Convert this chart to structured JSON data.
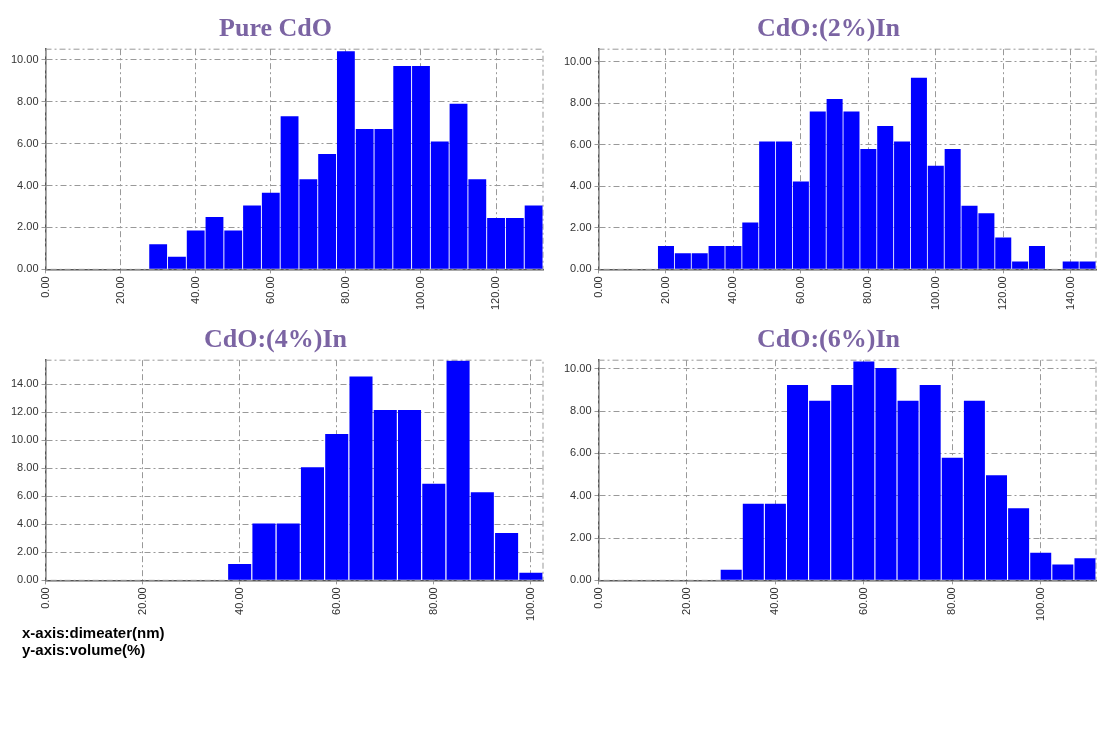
{
  "chart_data": [
    {
      "type": "histogram",
      "title": "Pure CdO",
      "bins": [
        27.5,
        32.5,
        37.5,
        42.5,
        47.5,
        52.5,
        57.5,
        62.5,
        67.5,
        72.5,
        77.5,
        82.5,
        87.5,
        92.5,
        97.5,
        102.5,
        107.5,
        112.5,
        117.5,
        122.5,
        127.5,
        132.5
      ],
      "values": [
        1.2,
        0.6,
        1.85,
        2.5,
        1.85,
        3.05,
        3.65,
        7.3,
        4.3,
        5.5,
        10.4,
        6.7,
        6.7,
        9.7,
        9.7,
        6.1,
        7.9,
        4.3,
        2.45,
        2.45,
        3.05
      ],
      "color": "#0000ff",
      "xlim": [
        0,
        132.5
      ],
      "ylim": [
        0,
        10.5
      ],
      "xticks": [
        {
          "value": 0,
          "label": "0.00"
        },
        {
          "value": 20,
          "label": "20.00"
        },
        {
          "value": 40,
          "label": "40.00"
        },
        {
          "value": 60,
          "label": "60.00"
        },
        {
          "value": 80,
          "label": "80.00"
        },
        {
          "value": 100,
          "label": "100.00"
        },
        {
          "value": 120,
          "label": "120.00"
        }
      ],
      "yticks": [
        {
          "value": 0,
          "label": "0.00"
        },
        {
          "value": 2,
          "label": "2.00"
        },
        {
          "value": 4,
          "label": "4.00"
        },
        {
          "value": 6,
          "label": "6.00"
        },
        {
          "value": 8,
          "label": "8.00"
        },
        {
          "value": 10,
          "label": "10.00"
        }
      ],
      "grid": true
    },
    {
      "type": "histogram",
      "title": "CdO:(2%)In",
      "bins": [
        17.5,
        22.5,
        27.5,
        32.5,
        37.5,
        42.5,
        47.5,
        52.5,
        57.5,
        62.5,
        67.5,
        72.5,
        77.5,
        82.5,
        87.5,
        92.5,
        97.5,
        102.5,
        107.5,
        112.5,
        117.5,
        122.5,
        127.5,
        132.5,
        137.5,
        142.5,
        147.5
      ],
      "values": [
        1.13,
        0.78,
        0.78,
        1.13,
        1.13,
        2.26,
        6.15,
        6.15,
        4.23,
        7.6,
        8.2,
        7.6,
        5.8,
        6.9,
        6.15,
        9.23,
        4.99,
        5.8,
        3.06,
        2.7,
        1.53,
        0.38,
        1.13,
        0,
        0.38,
        0.38
      ],
      "color": "#0000ff",
      "xlim": [
        0,
        147.5
      ],
      "ylim": [
        0,
        10.6
      ],
      "xticks": [
        {
          "value": 0,
          "label": "0.00"
        },
        {
          "value": 20,
          "label": "20.00"
        },
        {
          "value": 40,
          "label": "40.00"
        },
        {
          "value": 60,
          "label": "60.00"
        },
        {
          "value": 80,
          "label": "80.00"
        },
        {
          "value": 100,
          "label": "100.00"
        },
        {
          "value": 120,
          "label": "120.00"
        },
        {
          "value": 140,
          "label": "140.00"
        }
      ],
      "yticks": [
        {
          "value": 0,
          "label": "0.00"
        },
        {
          "value": 2,
          "label": "2.00"
        },
        {
          "value": 4,
          "label": "4.00"
        },
        {
          "value": 6,
          "label": "6.00"
        },
        {
          "value": 8,
          "label": "8.00"
        },
        {
          "value": 10,
          "label": "10.00"
        }
      ],
      "grid": true
    },
    {
      "type": "histogram",
      "title": "CdO:(4%)In",
      "bins": [
        37.5,
        42.5,
        47.5,
        52.5,
        57.5,
        62.5,
        67.5,
        72.5,
        77.5,
        82.5,
        87.5,
        92.5,
        97.5,
        102.5
      ],
      "values": [
        1.16,
        4.05,
        4.05,
        8.07,
        10.43,
        14.53,
        12.14,
        12.14,
        6.89,
        15.66,
        6.29,
        3.37,
        0.55
      ],
      "color": "#0000ff",
      "xlim": [
        0,
        102.5
      ],
      "ylim": [
        0,
        15.7
      ],
      "xticks": [
        {
          "value": 0,
          "label": "0.00"
        },
        {
          "value": 20,
          "label": "20.00"
        },
        {
          "value": 40,
          "label": "40.00"
        },
        {
          "value": 60,
          "label": "60.00"
        },
        {
          "value": 80,
          "label": "80.00"
        },
        {
          "value": 100,
          "label": "100.00"
        }
      ],
      "yticks": [
        {
          "value": 0,
          "label": "0.00"
        },
        {
          "value": 2,
          "label": "2.00"
        },
        {
          "value": 4,
          "label": "4.00"
        },
        {
          "value": 6,
          "label": "6.00"
        },
        {
          "value": 8,
          "label": "8.00"
        },
        {
          "value": 10,
          "label": "10.00"
        },
        {
          "value": 12,
          "label": "12.00"
        },
        {
          "value": 14,
          "label": "14.00"
        }
      ],
      "grid": true,
      "annotations": [
        "x-axis:dimeater(nm)",
        "y-axis:volume(%)"
      ]
    },
    {
      "type": "histogram",
      "title": "CdO:(6%)In",
      "bins": [
        27.5,
        32.5,
        37.5,
        42.5,
        47.5,
        52.5,
        57.5,
        62.5,
        67.5,
        72.5,
        77.5,
        82.5,
        87.5,
        92.5,
        97.5,
        102.5,
        107.5,
        112.5
      ],
      "values": [
        0.5,
        3.62,
        3.62,
        9.23,
        8.49,
        9.23,
        10.34,
        10.03,
        8.49,
        9.23,
        5.79,
        8.49,
        4.97,
        3.41,
        1.3,
        0.75,
        1.05
      ],
      "color": "#0000ff",
      "xlim": [
        0,
        112.5
      ],
      "ylim": [
        0,
        10.4
      ],
      "xticks": [
        {
          "value": 0,
          "label": "0.00"
        },
        {
          "value": 20,
          "label": "20.00"
        },
        {
          "value": 40,
          "label": "40.00"
        },
        {
          "value": 60,
          "label": "60.00"
        },
        {
          "value": 80,
          "label": "80.00"
        },
        {
          "value": 100,
          "label": "100.00"
        }
      ],
      "yticks": [
        {
          "value": 0,
          "label": "0.00"
        },
        {
          "value": 2,
          "label": "2.00"
        },
        {
          "value": 4,
          "label": "4.00"
        },
        {
          "value": 6,
          "label": "6.00"
        },
        {
          "value": 8,
          "label": "8.00"
        },
        {
          "value": 10,
          "label": "10.00"
        }
      ],
      "grid": true
    }
  ]
}
